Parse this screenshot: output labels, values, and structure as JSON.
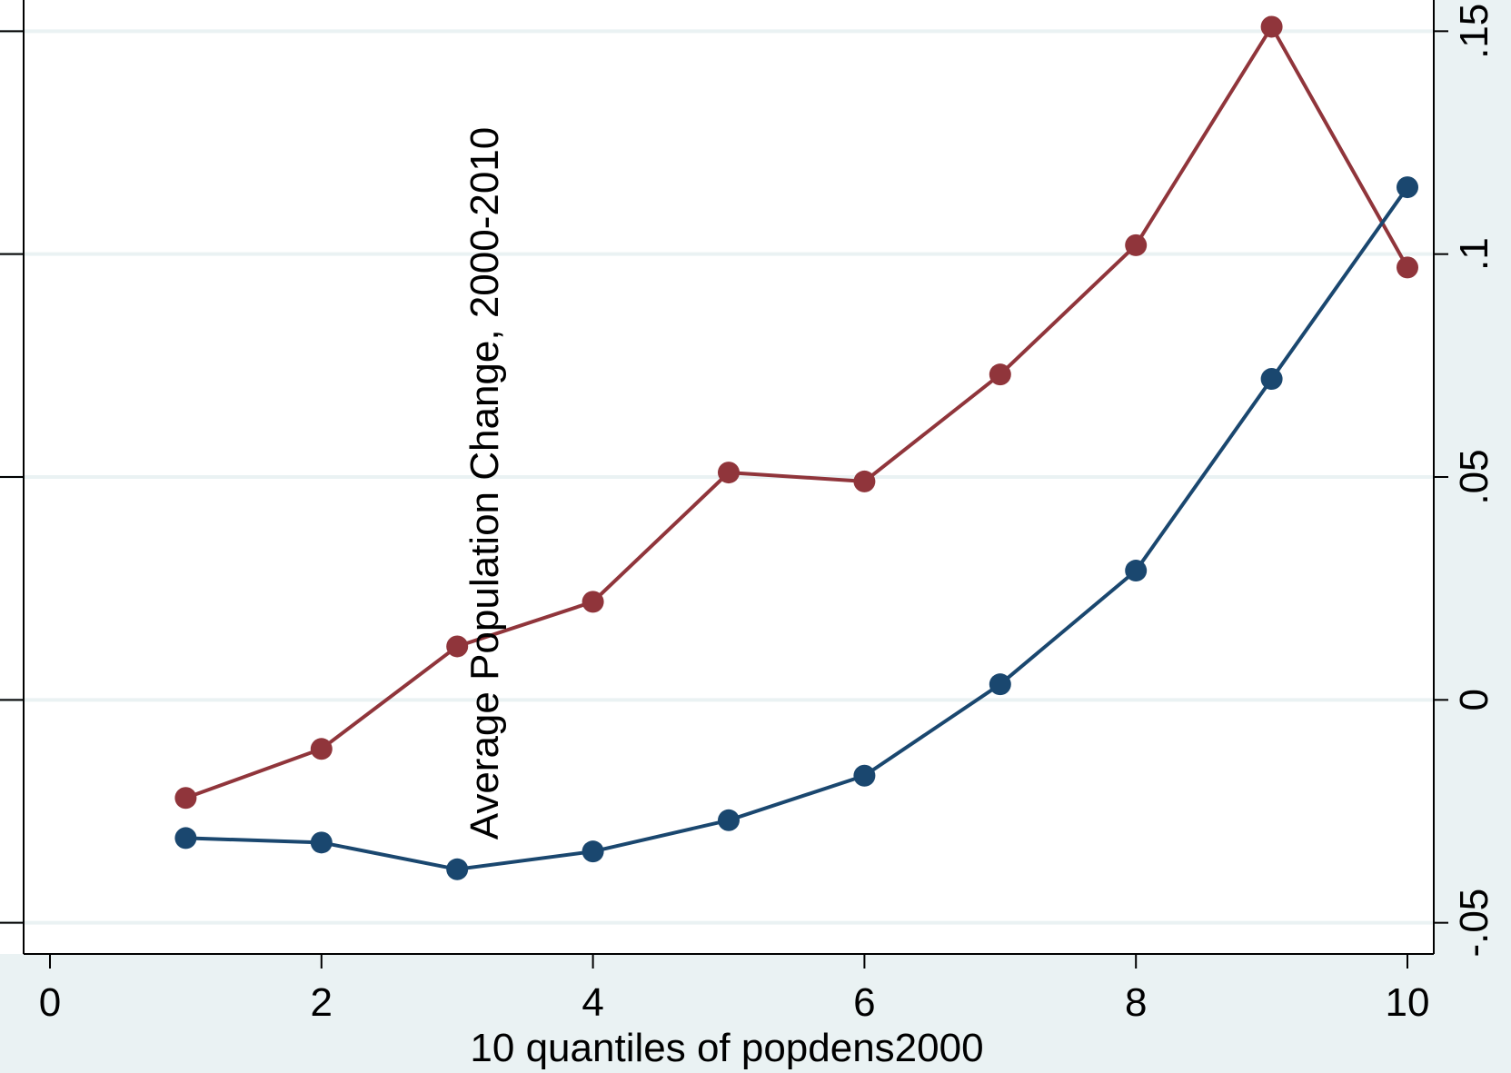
{
  "chart_data": {
    "type": "line",
    "x": [
      1,
      2,
      3,
      4,
      5,
      6,
      7,
      8,
      9,
      10
    ],
    "series": [
      {
        "color": "#90353b",
        "values": [
          -0.022,
          -0.011,
          0.012,
          0.022,
          0.051,
          0.049,
          0.073,
          0.102,
          0.151,
          0.097
        ]
      },
      {
        "color": "#1a476f",
        "values": [
          -0.031,
          -0.032,
          -0.038,
          -0.034,
          -0.027,
          -0.017,
          0.0035,
          0.029,
          0.072,
          0.115
        ]
      }
    ],
    "xlim": [
      0,
      10
    ],
    "ylim": [
      -0.057,
      0.157
    ],
    "xticks": [
      {
        "value": 0,
        "label": "0"
      },
      {
        "value": 2,
        "label": "2"
      },
      {
        "value": 4,
        "label": "4"
      },
      {
        "value": 6,
        "label": "6"
      },
      {
        "value": 8,
        "label": "8"
      },
      {
        "value": 10,
        "label": "10"
      }
    ],
    "yticks": [
      {
        "value": -0.05,
        "label": "-.05"
      },
      {
        "value": 0,
        "label": "0"
      },
      {
        "value": 0.05,
        "label": ".05"
      },
      {
        "value": 0.1,
        "label": ".1"
      },
      {
        "value": 0.15,
        "label": ".15"
      }
    ],
    "xlabel": "10 quantiles of popdens2000",
    "ylabel": "Average Population Change, 2000-2010",
    "y_axis_side": "right",
    "grid": true,
    "gridline_color": "#eaf2f3",
    "plot_background": "#ffffff",
    "page_background": "#eaf2f3"
  }
}
